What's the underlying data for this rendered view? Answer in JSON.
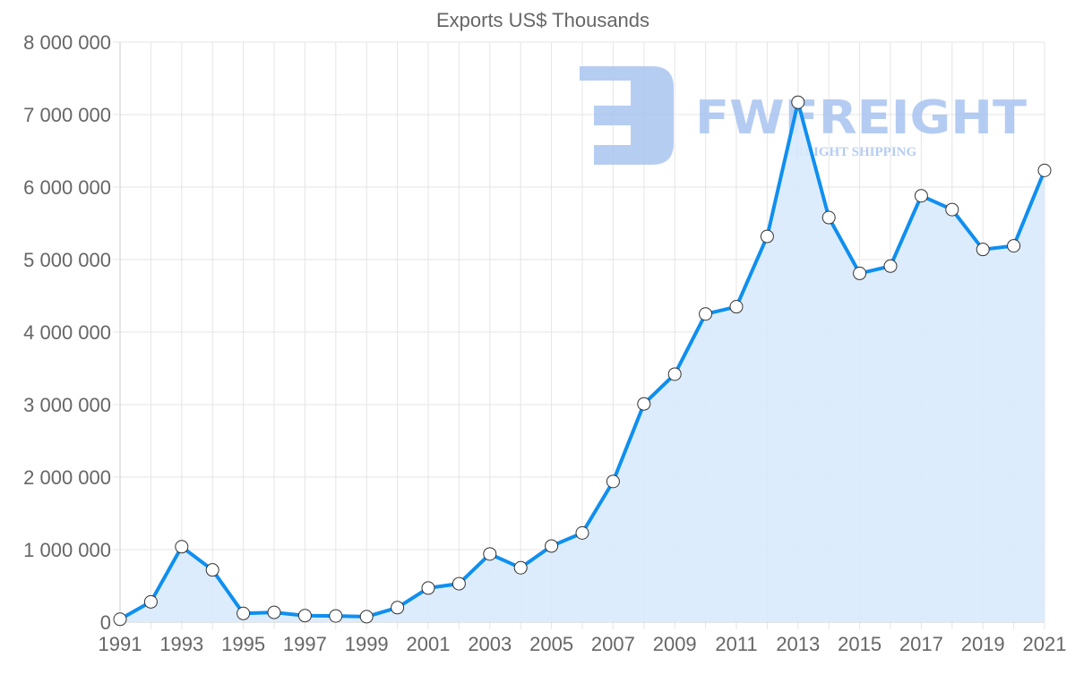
{
  "chart_data": {
    "type": "area",
    "title": "Exports US$ Thousands",
    "xlabel": "",
    "ylabel": "",
    "x": [
      1991,
      1992,
      1993,
      1994,
      1995,
      1996,
      1997,
      1998,
      1999,
      2000,
      2001,
      2002,
      2003,
      2004,
      2005,
      2006,
      2007,
      2008,
      2009,
      2010,
      2011,
      2012,
      2013,
      2014,
      2015,
      2016,
      2017,
      2018,
      2019,
      2020,
      2021
    ],
    "series": [
      {
        "name": "Exports US$ Thousands",
        "values": [
          40000,
          280000,
          1040000,
          720000,
          120000,
          135000,
          90000,
          85000,
          75000,
          200000,
          470000,
          530000,
          940000,
          750000,
          1050000,
          1230000,
          1940000,
          3010000,
          3420000,
          4250000,
          4350000,
          5320000,
          7170000,
          5580000,
          4810000,
          4910000,
          5880000,
          5690000,
          5140000,
          5190000,
          6230000
        ]
      }
    ],
    "ylim": [
      0,
      8000000
    ],
    "yticks": [
      0,
      1000000,
      2000000,
      3000000,
      4000000,
      5000000,
      6000000,
      7000000,
      8000000
    ],
    "ytick_labels": [
      "0",
      "1 000 000",
      "2 000 000",
      "3 000 000",
      "4 000 000",
      "5 000 000",
      "6 000 000",
      "7 000 000",
      "8 000 000"
    ],
    "xtick_labels": [
      "1991",
      "1993",
      "1995",
      "1997",
      "1999",
      "2001",
      "2003",
      "2005",
      "2007",
      "2009",
      "2011",
      "2013",
      "2015",
      "2017",
      "2019",
      "2021"
    ],
    "grid": true,
    "legend": "none",
    "colors": {
      "line": "#0f8ff0",
      "fill": "#d8eafc",
      "grid": "#e5e5e5",
      "watermark": "#a9c4f0"
    }
  },
  "watermark": {
    "brand": "FWFREIGHT",
    "tagline": "FREIGHT SHIPPING"
  }
}
